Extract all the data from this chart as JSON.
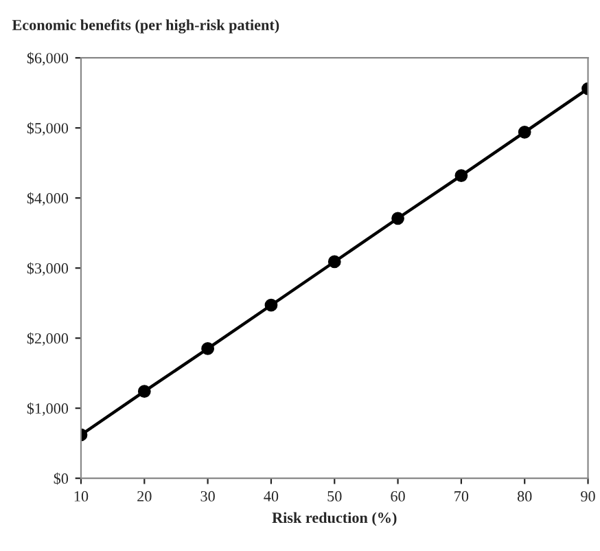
{
  "chart_data": {
    "type": "line",
    "title": "Economic benefits (per high-risk patient)",
    "xlabel": "Risk reduction (%)",
    "x": [
      10,
      20,
      30,
      40,
      50,
      60,
      70,
      80,
      90
    ],
    "series": [
      {
        "color": "#000000",
        "values": [
          620,
          1240,
          1850,
          2470,
          3090,
          3710,
          4320,
          4940,
          5560
        ]
      }
    ],
    "marker": "circle",
    "line_style": "solid",
    "xlim": [
      10,
      90
    ],
    "xticks": [
      10,
      20,
      30,
      40,
      50,
      60,
      70,
      80,
      90
    ],
    "ylim": [
      0,
      6000
    ],
    "yticks": [
      {
        "value": 0,
        "label": "$0"
      },
      {
        "value": 1000,
        "label": "$1,000"
      },
      {
        "value": 2000,
        "label": "$2,000"
      },
      {
        "value": 3000,
        "label": "$3,000"
      },
      {
        "value": 4000,
        "label": "$4,000"
      },
      {
        "value": 5000,
        "label": "$5,000"
      },
      {
        "value": 6000,
        "label": "$6,000"
      }
    ],
    "grid": false,
    "legend": false
  }
}
